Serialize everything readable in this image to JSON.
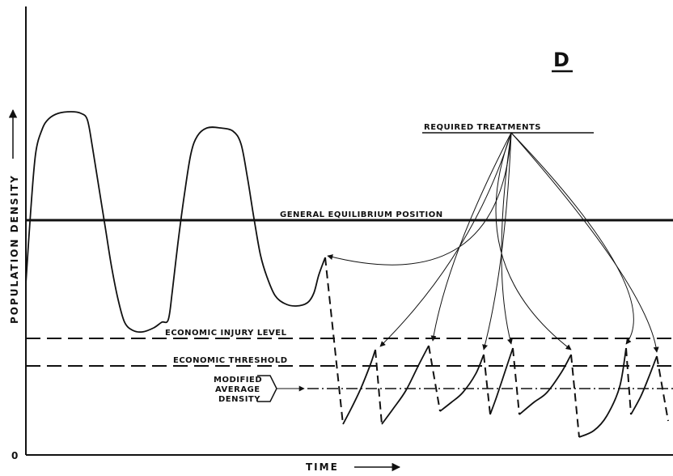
{
  "chart_data": {
    "type": "line",
    "panel_label": "D",
    "xlabel": "TIME",
    "ylabel": "POPULATION DENSITY",
    "origin_label": "0",
    "reference_lines": {
      "general_equilibrium": {
        "label": "GENERAL EQUILIBRIUM POSITION",
        "y": 272
      },
      "economic_injury_level": {
        "label": "ECONOMIC INJURY LEVEL",
        "y": 418
      },
      "economic_threshold": {
        "label": "ECONOMIC THRESHOLD",
        "y": 452
      },
      "modified_average_density": {
        "label_lines": [
          "MODIFIED",
          "AVERAGE",
          "DENSITY"
        ],
        "y": 480
      }
    },
    "required_treatments_label": "REQUIRED TREATMENTS",
    "untreated_curve": [
      [
        32,
        350
      ],
      [
        38,
        260
      ],
      [
        44,
        190
      ],
      [
        52,
        160
      ],
      [
        60,
        147
      ],
      [
        72,
        140
      ],
      [
        88,
        138
      ],
      [
        100,
        140
      ],
      [
        108,
        148
      ],
      [
        114,
        180
      ],
      [
        122,
        230
      ],
      [
        130,
        280
      ],
      [
        138,
        330
      ],
      [
        146,
        370
      ],
      [
        154,
        398
      ],
      [
        164,
        408
      ],
      [
        176,
        410
      ],
      [
        190,
        405
      ],
      [
        200,
        398
      ],
      [
        208,
        395
      ],
      [
        213,
        360
      ],
      [
        220,
        300
      ],
      [
        228,
        240
      ],
      [
        236,
        190
      ],
      [
        244,
        168
      ],
      [
        256,
        158
      ],
      [
        272,
        158
      ],
      [
        288,
        162
      ],
      [
        298,
        178
      ],
      [
        306,
        220
      ],
      [
        314,
        270
      ],
      [
        322,
        315
      ],
      [
        330,
        342
      ],
      [
        340,
        365
      ],
      [
        352,
        375
      ],
      [
        366,
        378
      ],
      [
        380,
        374
      ],
      [
        388,
        362
      ],
      [
        394,
        340
      ],
      [
        402,
        318
      ]
    ],
    "treatment_drops": [
      [
        [
          402,
          318
        ],
        [
          424,
          524
        ]
      ],
      [
        [
          464,
          432
        ],
        [
          472,
          524
        ]
      ],
      [
        [
          530,
          427
        ],
        [
          544,
          508
        ]
      ],
      [
        [
          598,
          438
        ],
        [
          606,
          512
        ]
      ],
      [
        [
          634,
          430
        ],
        [
          642,
          512
        ]
      ],
      [
        [
          706,
          438
        ],
        [
          716,
          540
        ]
      ],
      [
        [
          774,
          430
        ],
        [
          780,
          512
        ]
      ],
      [
        [
          812,
          440
        ],
        [
          826,
          520
        ]
      ]
    ],
    "regrowth_arcs": [
      [
        [
          424,
          524
        ],
        [
          434,
          505
        ],
        [
          446,
          480
        ],
        [
          458,
          450
        ],
        [
          464,
          432
        ]
      ],
      [
        [
          472,
          524
        ],
        [
          486,
          505
        ],
        [
          502,
          482
        ],
        [
          518,
          450
        ],
        [
          530,
          427
        ]
      ],
      [
        [
          544,
          508
        ],
        [
          558,
          497
        ],
        [
          572,
          485
        ],
        [
          588,
          462
        ],
        [
          598,
          438
        ]
      ],
      [
        [
          606,
          512
        ],
        [
          614,
          490
        ],
        [
          624,
          460
        ],
        [
          634,
          430
        ]
      ],
      [
        [
          642,
          512
        ],
        [
          660,
          497
        ],
        [
          676,
          485
        ],
        [
          694,
          460
        ],
        [
          706,
          438
        ]
      ],
      [
        [
          716,
          540
        ],
        [
          734,
          532
        ],
        [
          750,
          514
        ],
        [
          766,
          478
        ],
        [
          774,
          430
        ]
      ],
      [
        [
          780,
          512
        ],
        [
          792,
          490
        ],
        [
          802,
          466
        ],
        [
          812,
          440
        ]
      ]
    ],
    "treatment_arrows": [
      [
        [
          632,
          164
        ],
        [
          568,
          305
        ],
        [
          470,
          428
        ]
      ],
      [
        [
          632,
          164
        ],
        [
          568,
          305
        ],
        [
          535,
          421
        ]
      ],
      [
        [
          632,
          164
        ],
        [
          620,
          313
        ],
        [
          598,
          432
        ]
      ],
      [
        [
          632,
          164
        ],
        [
          620,
          313
        ],
        [
          632,
          425
        ]
      ],
      [
        [
          632,
          164
        ],
        [
          620,
          313
        ],
        [
          706,
          432
        ]
      ],
      [
        [
          632,
          164
        ],
        [
          762,
          328
        ],
        [
          774,
          425
        ]
      ],
      [
        [
          632,
          164
        ],
        [
          762,
          328
        ],
        [
          812,
          435
        ]
      ],
      [
        [
          632,
          164
        ],
        [
          568,
          305
        ],
        [
          405,
          316
        ]
      ]
    ]
  }
}
